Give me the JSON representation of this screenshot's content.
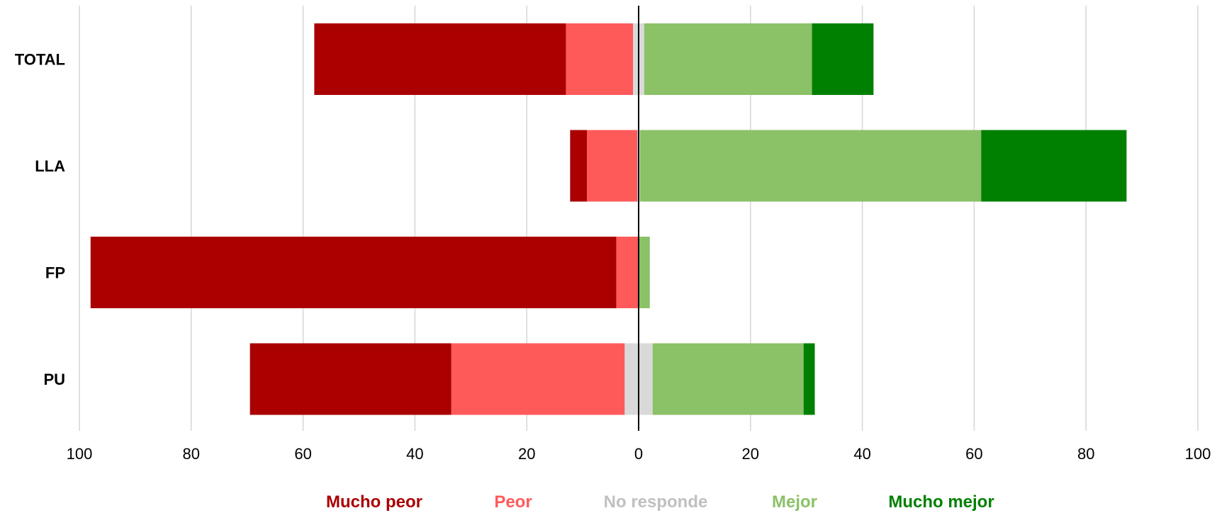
{
  "chart_data": {
    "type": "bar",
    "orientation": "horizontal",
    "stacking": "diverging",
    "categories": [
      "TOTAL",
      "LLA",
      "FP",
      "PU"
    ],
    "series": [
      {
        "name": "Mucho peor",
        "side": "negative",
        "color": "#aa0000",
        "values": [
          45,
          3,
          94,
          36
        ]
      },
      {
        "name": "Peor",
        "side": "negative",
        "color": "#ff5a5a",
        "values": [
          12,
          9,
          4,
          31
        ]
      },
      {
        "name": "No responde",
        "side": "center",
        "color": "#d9d9d9",
        "values": [
          2,
          0.5,
          0,
          5
        ]
      },
      {
        "name": "Mejor",
        "side": "positive",
        "color": "#8bc167",
        "values": [
          30,
          61,
          2,
          27
        ]
      },
      {
        "name": "Mucho mejor",
        "side": "positive",
        "color": "#008000",
        "values": [
          11,
          26,
          0,
          2
        ]
      }
    ],
    "xlim": [
      -100,
      100
    ],
    "x_ticks": [
      -100,
      -80,
      -60,
      -40,
      -20,
      0,
      20,
      40,
      60,
      80,
      100
    ],
    "x_tick_labels": [
      "100",
      "80",
      "60",
      "40",
      "20",
      "0",
      "20",
      "40",
      "60",
      "80",
      "100"
    ],
    "grid": true,
    "legend_position": "bottom",
    "title": "",
    "xlabel": "",
    "ylabel": ""
  }
}
